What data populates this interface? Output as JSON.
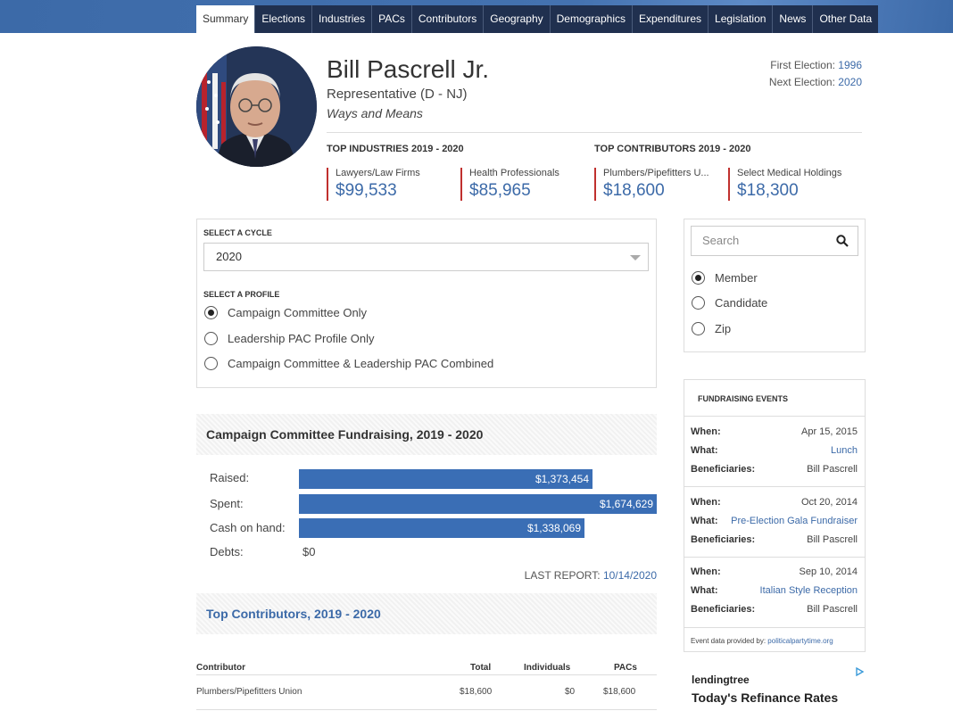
{
  "nav": {
    "tabs": [
      "Summary",
      "Elections",
      "Industries",
      "PACs",
      "Contributors",
      "Geography",
      "Demographics",
      "Expenditures",
      "Legislation",
      "News",
      "Other Data"
    ],
    "active": "Summary"
  },
  "profile": {
    "name": "Bill Pascrell Jr.",
    "role": "Representative (D - NJ)",
    "committee": "Ways and Means",
    "first_election_label": "First Election:",
    "first_election": "1996",
    "next_election_label": "Next Election:",
    "next_election": "2020"
  },
  "top_industries": {
    "heading": "TOP INDUSTRIES 2019 - 2020",
    "items": [
      {
        "label": "Lawyers/Law Firms",
        "amount": "$99,533"
      },
      {
        "label": "Health Professionals",
        "amount": "$85,965"
      }
    ]
  },
  "top_contributors_summary": {
    "heading": "TOP CONTRIBUTORS 2019 - 2020",
    "items": [
      {
        "label": "Plumbers/Pipefitters U...",
        "amount": "$18,600"
      },
      {
        "label": "Select Medical Holdings",
        "amount": "$18,300"
      }
    ]
  },
  "cycle": {
    "heading": "SELECT A CYCLE",
    "selected": "2020"
  },
  "profile_select": {
    "heading": "SELECT A PROFILE",
    "options": [
      "Campaign Committee Only",
      "Leadership PAC Profile Only",
      "Campaign Committee & Leadership PAC Combined"
    ],
    "selected_index": 0
  },
  "search": {
    "placeholder": "Search",
    "options": [
      "Member",
      "Candidate",
      "Zip"
    ],
    "selected_index": 0
  },
  "fundraising": {
    "title": "Campaign Committee Fundraising, 2019 - 2020",
    "rows": [
      {
        "label": "Raised:",
        "value": "$1,373,454",
        "amount": 1373454
      },
      {
        "label": "Spent:",
        "value": "$1,674,629",
        "amount": 1674629
      },
      {
        "label": "Cash on hand:",
        "value": "$1,338,069",
        "amount": 1338069
      }
    ],
    "debts_label": "Debts:",
    "debts_value": "$0",
    "last_report_label": "LAST REPORT:",
    "last_report_date": "10/14/2020"
  },
  "top_contributors": {
    "title": "Top Contributors, 2019 - 2020",
    "columns": [
      "Contributor",
      "Total",
      "Individuals",
      "PACs"
    ],
    "rows": [
      {
        "contributor": "Plumbers/Pipefitters Union",
        "total": "$18,600",
        "individuals": "$0",
        "pacs": "$18,600"
      }
    ]
  },
  "events": {
    "heading": "FUNDRAISING EVENTS",
    "when_label": "When:",
    "what_label": "What:",
    "beneficiaries_label": "Beneficiaries:",
    "items": [
      {
        "when": "Apr 15, 2015",
        "what": "Lunch",
        "beneficiaries": "Bill Pascrell"
      },
      {
        "when": "Oct 20, 2014",
        "what": "Pre-Election Gala Fundraiser",
        "beneficiaries": "Bill Pascrell"
      },
      {
        "when": "Sep 10, 2014",
        "what": "Italian Style Reception",
        "beneficiaries": "Bill Pascrell"
      }
    ],
    "credit_text": "Event data provided by:",
    "credit_link": "politicalpartytime.org"
  },
  "ad": {
    "brand": "lendingtree",
    "title": "Today's Refinance Rates"
  },
  "colors": {
    "nav_bg": "#20304f",
    "accent_blue": "#3c6aa8",
    "bar_blue": "#3a6eb5",
    "accent_red": "#c0302e"
  }
}
